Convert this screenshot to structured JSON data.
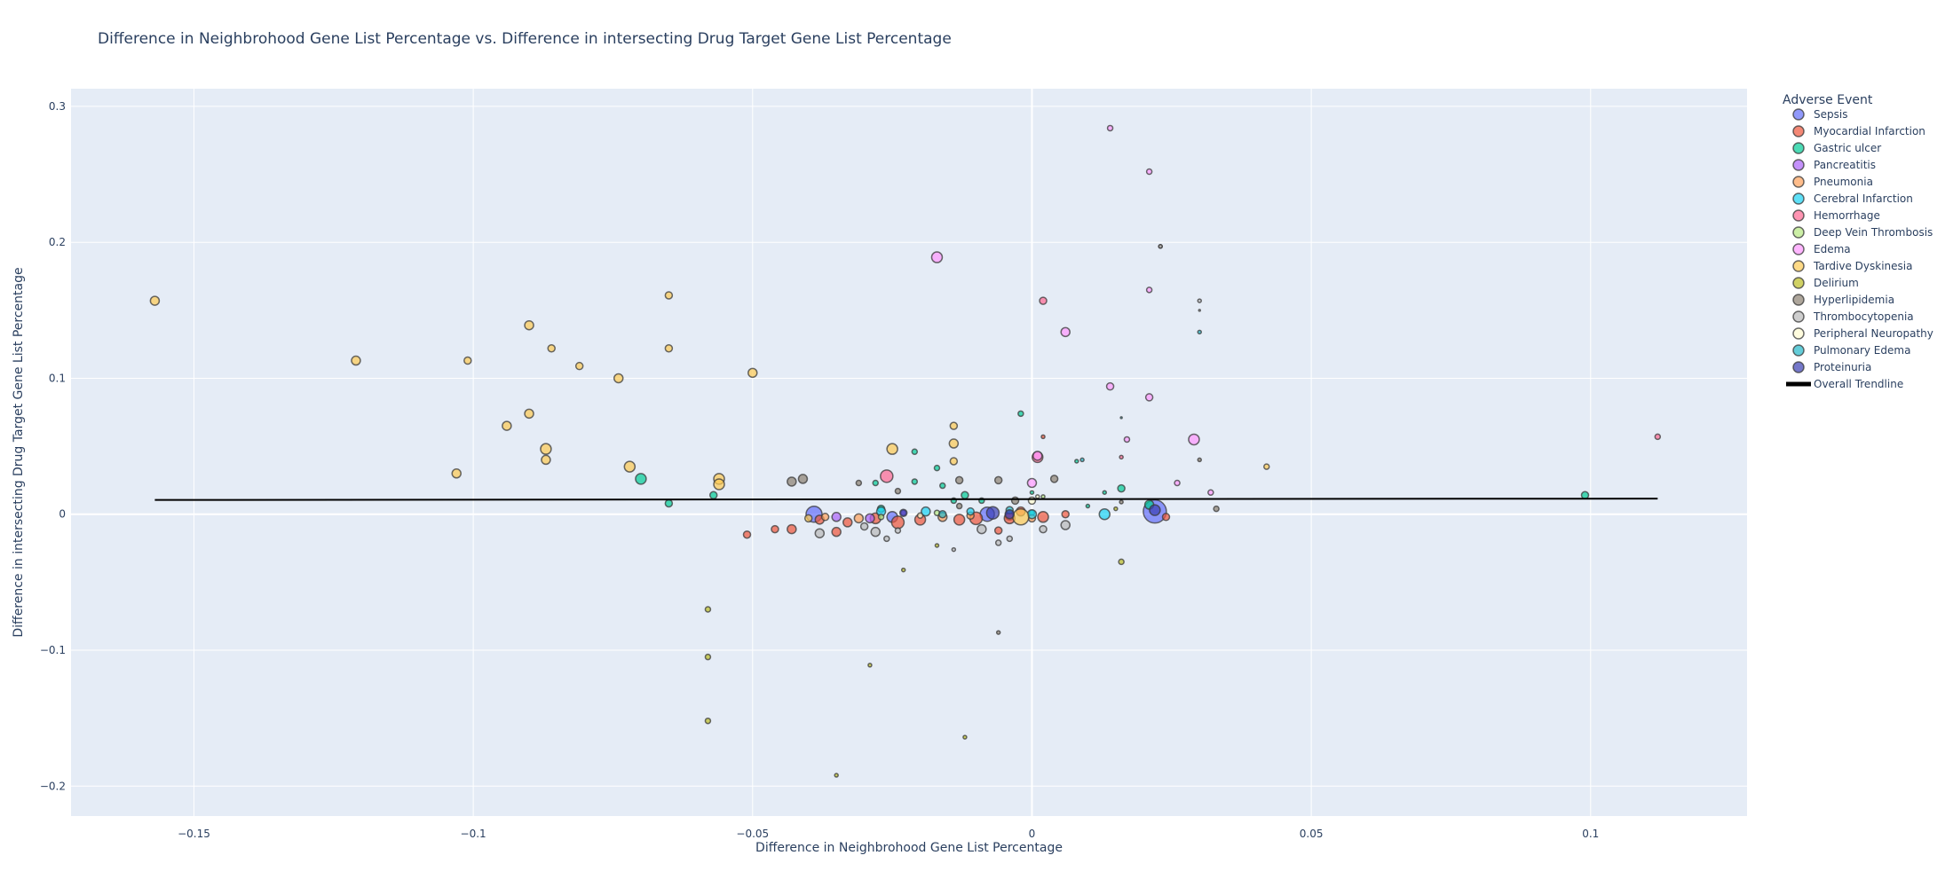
{
  "chart_data": {
    "type": "scatter",
    "title": "Difference in Neighbrohood Gene List Percentage vs. Difference in intersecting Drug Target Gene List Percentage",
    "xlabel": "Difference in Neighbrohood Gene List Percentage",
    "ylabel": "Difference in intersecting Drug Target Gene List Percentage",
    "xlim": [
      -0.172,
      0.128
    ],
    "ylim": [
      -0.222,
      0.313
    ],
    "x_ticks": [
      -0.15,
      -0.1,
      -0.05,
      0,
      0.05,
      0.1
    ],
    "x_tick_labels": [
      "−0.15",
      "−0.1",
      "−0.05",
      "0",
      "0.05",
      "0.1"
    ],
    "y_ticks": [
      -0.2,
      -0.1,
      0,
      0.1,
      0.2,
      0.3
    ],
    "y_tick_labels": [
      "−0.2",
      "−0.1",
      "0",
      "0.1",
      "0.2",
      "0.3"
    ],
    "grid": true,
    "legend": {
      "title": "Adverse Event",
      "placement": "right"
    },
    "trendline": {
      "name": "Overall Trendline",
      "color": "#000000",
      "x": [
        -0.157,
        0.112
      ],
      "y": [
        0.0105,
        0.0115
      ]
    },
    "series": [
      {
        "name": "Sepsis",
        "color": "#636efa",
        "points": [
          [
            -0.039,
            0.0,
            9
          ],
          [
            0.022,
            0.002,
            13
          ],
          [
            -0.008,
            0.0,
            8
          ],
          [
            -0.025,
            -0.002,
            6
          ],
          [
            -0.004,
            -0.001,
            5
          ]
        ]
      },
      {
        "name": "Myocardial Infarction",
        "color": "#EF553B",
        "points": [
          [
            -0.051,
            -0.015,
            4
          ],
          [
            -0.046,
            -0.011,
            4
          ],
          [
            -0.043,
            -0.011,
            5
          ],
          [
            -0.035,
            -0.013,
            5
          ],
          [
            -0.038,
            -0.004,
            5
          ],
          [
            -0.033,
            -0.006,
            5
          ],
          [
            -0.028,
            -0.003,
            6
          ],
          [
            -0.024,
            -0.006,
            7
          ],
          [
            -0.02,
            -0.004,
            6
          ],
          [
            -0.013,
            -0.004,
            6
          ],
          [
            -0.01,
            -0.003,
            7
          ],
          [
            -0.006,
            -0.012,
            4
          ],
          [
            -0.004,
            -0.003,
            6
          ],
          [
            -0.002,
            0.002,
            5
          ],
          [
            0.002,
            -0.002,
            6
          ],
          [
            0.006,
            0.0,
            4
          ],
          [
            0.024,
            -0.002,
            4
          ],
          [
            0.002,
            0.057,
            2
          ]
        ]
      },
      {
        "name": "Gastric ulcer",
        "color": "#00cc96",
        "points": [
          [
            -0.07,
            0.026,
            6
          ],
          [
            -0.065,
            0.008,
            4
          ],
          [
            -0.057,
            0.014,
            4
          ],
          [
            -0.027,
            0.004,
            4
          ],
          [
            -0.028,
            0.023,
            3
          ],
          [
            -0.021,
            0.046,
            3
          ],
          [
            -0.021,
            0.024,
            3
          ],
          [
            -0.017,
            0.034,
            3
          ],
          [
            -0.016,
            0.021,
            3
          ],
          [
            -0.014,
            0.01,
            3
          ],
          [
            -0.012,
            0.014,
            4
          ],
          [
            -0.009,
            0.01,
            3
          ],
          [
            -0.002,
            0.074,
            3
          ],
          [
            0.0,
            0.016,
            2
          ],
          [
            0.0,
            0.001,
            3
          ],
          [
            0.008,
            0.039,
            2
          ],
          [
            0.01,
            0.006,
            2
          ],
          [
            0.013,
            0.016,
            2
          ],
          [
            0.016,
            0.019,
            4
          ],
          [
            0.021,
            0.007,
            5
          ],
          [
            0.099,
            0.014,
            4
          ]
        ]
      },
      {
        "name": "Pancreatitis",
        "color": "#ab63fa",
        "points": [
          [
            -0.035,
            -0.002,
            5
          ],
          [
            -0.029,
            -0.003,
            5
          ],
          [
            -0.023,
            0.001,
            3
          ]
        ]
      },
      {
        "name": "Pneumonia",
        "color": "#FFA15A",
        "points": [
          [
            -0.037,
            -0.002,
            4
          ],
          [
            -0.031,
            -0.003,
            5
          ],
          [
            -0.016,
            -0.002,
            5
          ],
          [
            -0.011,
            -0.001,
            4
          ],
          [
            0.0,
            -0.003,
            4
          ]
        ]
      },
      {
        "name": "Cerebral Infarction",
        "color": "#19d3f3",
        "points": [
          [
            -0.027,
            0.002,
            5
          ],
          [
            -0.019,
            0.002,
            5
          ],
          [
            -0.011,
            0.002,
            4
          ],
          [
            0.0,
            0.0,
            5
          ],
          [
            0.013,
            0.0,
            6
          ]
        ]
      },
      {
        "name": "Hemorrhage",
        "color": "#FF6692",
        "points": [
          [
            -0.026,
            0.028,
            7
          ],
          [
            0.002,
            0.157,
            4
          ],
          [
            0.001,
            0.042,
            6
          ],
          [
            0.016,
            0.042,
            2
          ],
          [
            0.112,
            0.057,
            3
          ]
        ]
      },
      {
        "name": "Deep Vein Thrombosis",
        "color": "#B6E880",
        "points": [
          [
            -0.027,
            -0.002,
            3
          ],
          [
            -0.017,
            0.001,
            3
          ],
          [
            0.002,
            0.013,
            2
          ]
        ]
      },
      {
        "name": "Edema",
        "color": "#FF97FF",
        "points": [
          [
            -0.017,
            0.189,
            6
          ],
          [
            0.014,
            0.284,
            3
          ],
          [
            0.021,
            0.252,
            3
          ],
          [
            0.021,
            0.165,
            3
          ],
          [
            0.006,
            0.134,
            5
          ],
          [
            0.014,
            0.094,
            4
          ],
          [
            0.021,
            0.086,
            4
          ],
          [
            0.029,
            0.055,
            6
          ],
          [
            0.0,
            0.023,
            5
          ],
          [
            0.017,
            0.055,
            3
          ],
          [
            0.026,
            0.023,
            3
          ],
          [
            0.032,
            0.016,
            3
          ],
          [
            0.001,
            0.043,
            5
          ]
        ]
      },
      {
        "name": "Tardive Dyskinesia",
        "color": "#FECB52",
        "points": [
          [
            -0.157,
            0.157,
            5
          ],
          [
            -0.121,
            0.113,
            5
          ],
          [
            -0.103,
            0.03,
            5
          ],
          [
            -0.101,
            0.113,
            4
          ],
          [
            -0.094,
            0.065,
            5
          ],
          [
            -0.09,
            0.139,
            5
          ],
          [
            -0.09,
            0.074,
            5
          ],
          [
            -0.087,
            0.048,
            6
          ],
          [
            -0.087,
            0.04,
            5
          ],
          [
            -0.086,
            0.122,
            4
          ],
          [
            -0.081,
            0.109,
            4
          ],
          [
            -0.074,
            0.1,
            5
          ],
          [
            -0.072,
            0.035,
            6
          ],
          [
            -0.065,
            0.161,
            4
          ],
          [
            -0.065,
            0.122,
            4
          ],
          [
            -0.056,
            0.026,
            6
          ],
          [
            -0.056,
            0.022,
            6
          ],
          [
            -0.05,
            0.104,
            5
          ],
          [
            -0.025,
            0.048,
            6
          ],
          [
            -0.014,
            0.065,
            4
          ],
          [
            -0.014,
            0.052,
            5
          ],
          [
            -0.014,
            0.039,
            4
          ],
          [
            0.042,
            0.035,
            3
          ],
          [
            -0.04,
            -0.003,
            4
          ],
          [
            -0.002,
            -0.002,
            9
          ]
        ]
      },
      {
        "name": "Delirium",
        "color": "#bcbd22",
        "points": [
          [
            -0.058,
            -0.07,
            3
          ],
          [
            -0.058,
            -0.105,
            3
          ],
          [
            -0.058,
            -0.152,
            3
          ],
          [
            -0.035,
            -0.192,
            2
          ],
          [
            -0.029,
            -0.111,
            2
          ],
          [
            -0.023,
            -0.041,
            2
          ],
          [
            -0.017,
            -0.023,
            2
          ],
          [
            -0.012,
            -0.164,
            2
          ],
          [
            0.016,
            -0.035,
            3
          ],
          [
            0.015,
            0.004,
            2
          ]
        ]
      },
      {
        "name": "Hyperlipidemia",
        "color": "#8c8070",
        "points": [
          [
            -0.043,
            0.024,
            5
          ],
          [
            -0.041,
            0.026,
            5
          ],
          [
            -0.031,
            0.023,
            3
          ],
          [
            -0.024,
            0.017,
            3
          ],
          [
            -0.013,
            0.025,
            4
          ],
          [
            -0.006,
            0.025,
            4
          ],
          [
            -0.013,
            0.006,
            3
          ],
          [
            -0.003,
            0.01,
            4
          ],
          [
            0.004,
            0.026,
            4
          ],
          [
            0.03,
            0.04,
            2
          ],
          [
            0.033,
            0.004,
            3
          ],
          [
            0.016,
            0.009,
            2
          ],
          [
            0.023,
            0.197,
            2
          ],
          [
            -0.006,
            -0.087,
            2
          ]
        ]
      },
      {
        "name": "Thrombocytopenia",
        "color": "#b9b9b9",
        "points": [
          [
            -0.038,
            -0.014,
            5
          ],
          [
            -0.03,
            -0.009,
            4
          ],
          [
            -0.028,
            -0.013,
            5
          ],
          [
            -0.026,
            -0.018,
            3
          ],
          [
            -0.024,
            -0.012,
            3
          ],
          [
            -0.009,
            -0.011,
            5
          ],
          [
            -0.006,
            -0.021,
            3
          ],
          [
            -0.004,
            -0.018,
            3
          ],
          [
            0.002,
            -0.011,
            4
          ],
          [
            0.006,
            -0.008,
            5
          ],
          [
            -0.014,
            -0.026,
            2
          ],
          [
            0.023,
            0.197,
            2
          ],
          [
            0.03,
            0.157,
            2
          ],
          [
            0.03,
            0.15,
            1
          ]
        ]
      },
      {
        "name": "Peripheral Neuropathy",
        "color": "#fffbd0",
        "points": [
          [
            -0.02,
            -0.001,
            3
          ],
          [
            0.0,
            0.01,
            4
          ],
          [
            0.001,
            0.013,
            2
          ]
        ]
      },
      {
        "name": "Pulmonary Edema",
        "color": "#22b8c9",
        "points": [
          [
            -0.016,
            0.0,
            4
          ],
          [
            -0.004,
            0.003,
            4
          ],
          [
            0.009,
            0.04,
            2
          ],
          [
            0.03,
            0.134,
            2
          ],
          [
            0.016,
            0.071,
            1
          ]
        ]
      },
      {
        "name": "Proteinuria",
        "color": "#3b3fb3",
        "points": [
          [
            -0.023,
            0.001,
            4
          ],
          [
            -0.007,
            0.001,
            7
          ],
          [
            -0.004,
            0.0,
            5
          ],
          [
            0.022,
            0.003,
            6
          ]
        ]
      }
    ]
  }
}
